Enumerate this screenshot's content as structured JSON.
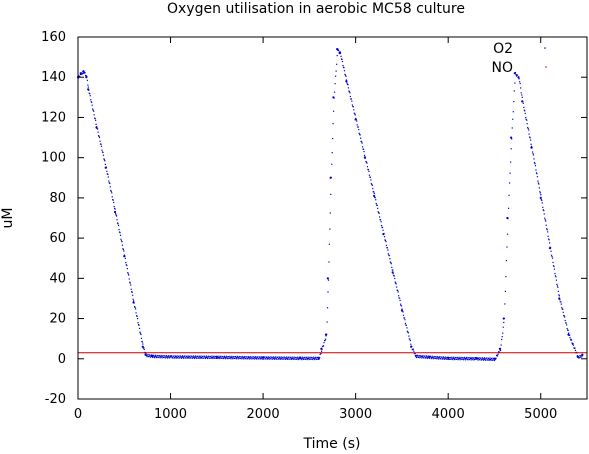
{
  "chart_data": {
    "type": "scatter",
    "title": "Oxygen utilisation in aerobic MC58 culture",
    "xlabel": "Time (s)",
    "ylabel": "uM",
    "xlim": [
      0,
      5500
    ],
    "ylim": [
      -20,
      160
    ],
    "x_ticks": [
      0,
      1000,
      2000,
      3000,
      4000,
      5000
    ],
    "x_tick_labels": [
      "0",
      "1000",
      "2000",
      "3000",
      "4000",
      "5000"
    ],
    "y_ticks": [
      -20,
      0,
      20,
      40,
      60,
      80,
      100,
      120,
      140,
      160
    ],
    "y_tick_labels": [
      "-20",
      "0",
      "20",
      "40",
      "60",
      "80",
      "100",
      "120",
      "140",
      "160"
    ],
    "grid": false,
    "legend_position": "top-right",
    "series": [
      {
        "name": "O2",
        "color": "#0000cc",
        "style": "points",
        "points": [
          [
            0,
            140
          ],
          [
            30,
            142
          ],
          [
            60,
            143
          ],
          [
            90,
            140
          ],
          [
            110,
            134
          ],
          [
            200,
            115
          ],
          [
            300,
            95
          ],
          [
            400,
            73
          ],
          [
            500,
            51
          ],
          [
            600,
            28
          ],
          [
            700,
            6
          ],
          [
            730,
            2
          ],
          [
            800,
            1.5
          ],
          [
            1000,
            1.2
          ],
          [
            1500,
            1
          ],
          [
            2000,
            0.7
          ],
          [
            2400,
            0.5
          ],
          [
            2600,
            0.5
          ],
          [
            2630,
            5
          ],
          [
            2680,
            12
          ],
          [
            2700,
            40
          ],
          [
            2730,
            90
          ],
          [
            2760,
            130
          ],
          [
            2800,
            154
          ],
          [
            2830,
            152
          ],
          [
            2900,
            138
          ],
          [
            3000,
            119
          ],
          [
            3100,
            100
          ],
          [
            3200,
            81
          ],
          [
            3300,
            62
          ],
          [
            3400,
            43
          ],
          [
            3500,
            24
          ],
          [
            3600,
            6
          ],
          [
            3650,
            1.5
          ],
          [
            3800,
            1
          ],
          [
            4000,
            0.5
          ],
          [
            4300,
            0.3
          ],
          [
            4500,
            0
          ],
          [
            4560,
            5
          ],
          [
            4600,
            20
          ],
          [
            4640,
            70
          ],
          [
            4680,
            110
          ],
          [
            4720,
            142
          ],
          [
            4760,
            140
          ],
          [
            4800,
            128
          ],
          [
            4900,
            105
          ],
          [
            5000,
            80
          ],
          [
            5100,
            55
          ],
          [
            5200,
            30
          ],
          [
            5300,
            12
          ],
          [
            5400,
            1
          ],
          [
            5450,
            2
          ]
        ]
      },
      {
        "name": "NO",
        "color": "#cc0000",
        "style": "line",
        "points": [
          [
            0,
            3
          ],
          [
            5500,
            3
          ]
        ]
      }
    ]
  }
}
